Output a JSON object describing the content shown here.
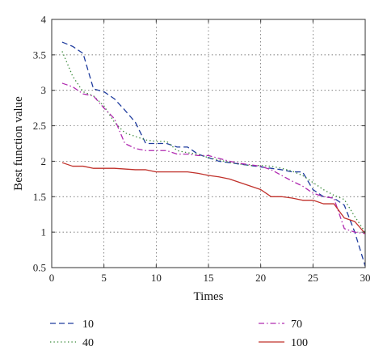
{
  "chart_data": {
    "type": "line",
    "title": "",
    "xlabel": "Times",
    "ylabel": "Best function value",
    "xlim": [
      0,
      30
    ],
    "ylim": [
      0.5,
      4
    ],
    "xticks": [
      0,
      5,
      10,
      15,
      20,
      25,
      30
    ],
    "yticks": [
      0.5,
      1,
      1.5,
      2,
      2.5,
      3,
      3.5,
      4
    ],
    "xtick_labels": [
      "0",
      "5",
      "10",
      "15",
      "20",
      "25",
      "30"
    ],
    "ytick_labels": [
      "0.5",
      "1",
      "1.5",
      "2",
      "2.5",
      "3",
      "3.5",
      "4"
    ],
    "grid": true,
    "legend_placement": "below",
    "series": [
      {
        "name": "10",
        "color": "#1f3c9e",
        "dash": "dashed",
        "x": [
          1,
          2,
          3,
          4,
          5,
          6,
          7,
          8,
          9,
          10,
          11,
          12,
          13,
          14,
          15,
          16,
          17,
          18,
          19,
          20,
          21,
          22,
          23,
          24,
          25,
          26,
          27,
          28,
          29,
          30
        ],
        "y": [
          3.68,
          3.62,
          3.52,
          3.02,
          2.98,
          2.88,
          2.72,
          2.55,
          2.25,
          2.25,
          2.25,
          2.2,
          2.2,
          2.1,
          2.05,
          2.0,
          1.98,
          1.96,
          1.94,
          1.92,
          1.9,
          1.88,
          1.85,
          1.85,
          1.6,
          1.5,
          1.48,
          1.38,
          1.0,
          0.52
        ]
      },
      {
        "name": "40",
        "color": "#3a8a3a",
        "dash": "dotted",
        "x": [
          1,
          2,
          3,
          4,
          5,
          6,
          7,
          8,
          9,
          10,
          11,
          12,
          13,
          14,
          15,
          16,
          17,
          18,
          19,
          20,
          21,
          22,
          23,
          24,
          25,
          26,
          27,
          28,
          29,
          30
        ],
        "y": [
          3.55,
          3.2,
          2.98,
          2.92,
          2.78,
          2.55,
          2.4,
          2.35,
          2.3,
          2.28,
          2.28,
          2.15,
          2.12,
          2.1,
          2.05,
          2.02,
          1.98,
          1.96,
          1.94,
          1.94,
          1.93,
          1.9,
          1.86,
          1.8,
          1.7,
          1.6,
          1.52,
          1.46,
          1.22,
          1.0
        ]
      },
      {
        "name": "70",
        "color": "#b02ab0",
        "dash": "dashdot",
        "x": [
          1,
          2,
          3,
          4,
          5,
          6,
          7,
          8,
          9,
          10,
          11,
          12,
          13,
          14,
          15,
          16,
          17,
          18,
          19,
          20,
          21,
          22,
          23,
          24,
          25,
          26,
          27,
          28,
          29,
          30
        ],
        "y": [
          3.1,
          3.05,
          2.95,
          2.92,
          2.75,
          2.6,
          2.25,
          2.18,
          2.15,
          2.15,
          2.15,
          2.1,
          2.1,
          2.08,
          2.08,
          2.04,
          2.0,
          1.97,
          1.95,
          1.93,
          1.88,
          1.8,
          1.72,
          1.65,
          1.55,
          1.5,
          1.48,
          1.05,
          1.0,
          0.98
        ]
      },
      {
        "name": "100",
        "color": "#c0302a",
        "dash": "solid",
        "x": [
          1,
          2,
          3,
          4,
          5,
          6,
          7,
          8,
          9,
          10,
          11,
          12,
          13,
          14,
          15,
          16,
          17,
          18,
          19,
          20,
          21,
          22,
          23,
          24,
          25,
          26,
          27,
          28,
          29,
          30
        ],
        "y": [
          1.98,
          1.93,
          1.93,
          1.9,
          1.9,
          1.9,
          1.89,
          1.88,
          1.88,
          1.85,
          1.85,
          1.85,
          1.85,
          1.83,
          1.8,
          1.78,
          1.75,
          1.7,
          1.65,
          1.6,
          1.5,
          1.5,
          1.48,
          1.45,
          1.45,
          1.4,
          1.4,
          1.2,
          1.15,
          0.98
        ]
      }
    ]
  }
}
